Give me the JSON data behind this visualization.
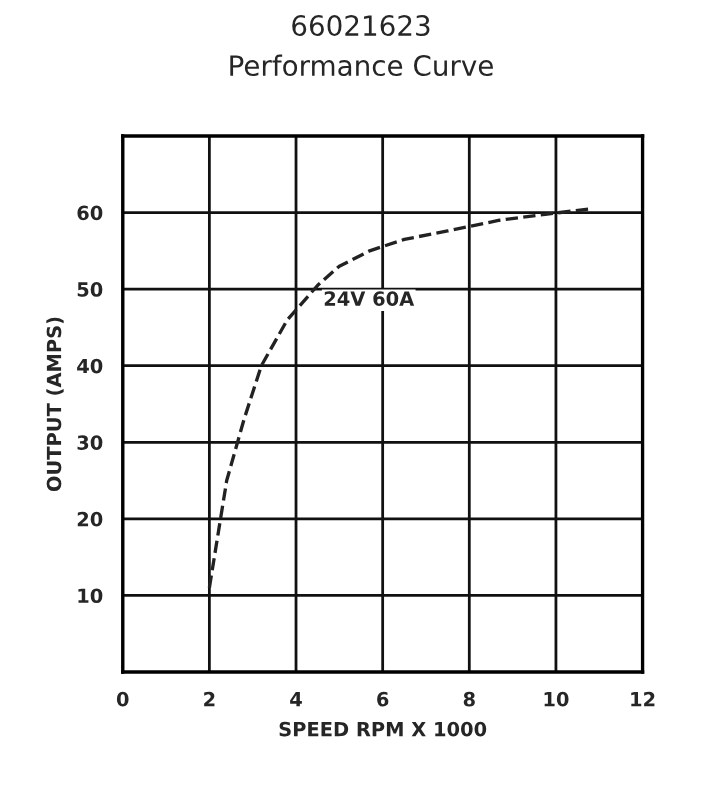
{
  "chart_data": {
    "type": "line",
    "title": "66021623",
    "subtitle": "Performance Curve",
    "xlabel": "SPEED RPM X 1000",
    "ylabel": "OUTPUT (AMPS)",
    "x": [
      2.0,
      2.4,
      2.8,
      3.2,
      3.8,
      4.5,
      5.0,
      5.7,
      6.5,
      7.5,
      8.7,
      9.8,
      10.8
    ],
    "series": [
      {
        "color": "#222222",
        "values": [
          11,
          25,
          33,
          40,
          46,
          50.5,
          53,
          55,
          56.5,
          57.6,
          59,
          59.8,
          60.5
        ]
      }
    ],
    "annotations": [
      {
        "text": "24V 60A",
        "x": 4.5,
        "y": 50.5
      }
    ],
    "xlim": [
      0,
      12
    ],
    "ylim": [
      0,
      70
    ],
    "xticks": [
      0,
      2,
      4,
      6,
      8,
      10,
      12
    ],
    "yticks": [
      10,
      20,
      30,
      40,
      50,
      60
    ],
    "grid": true,
    "line_style": "dashed",
    "marker": "none"
  }
}
